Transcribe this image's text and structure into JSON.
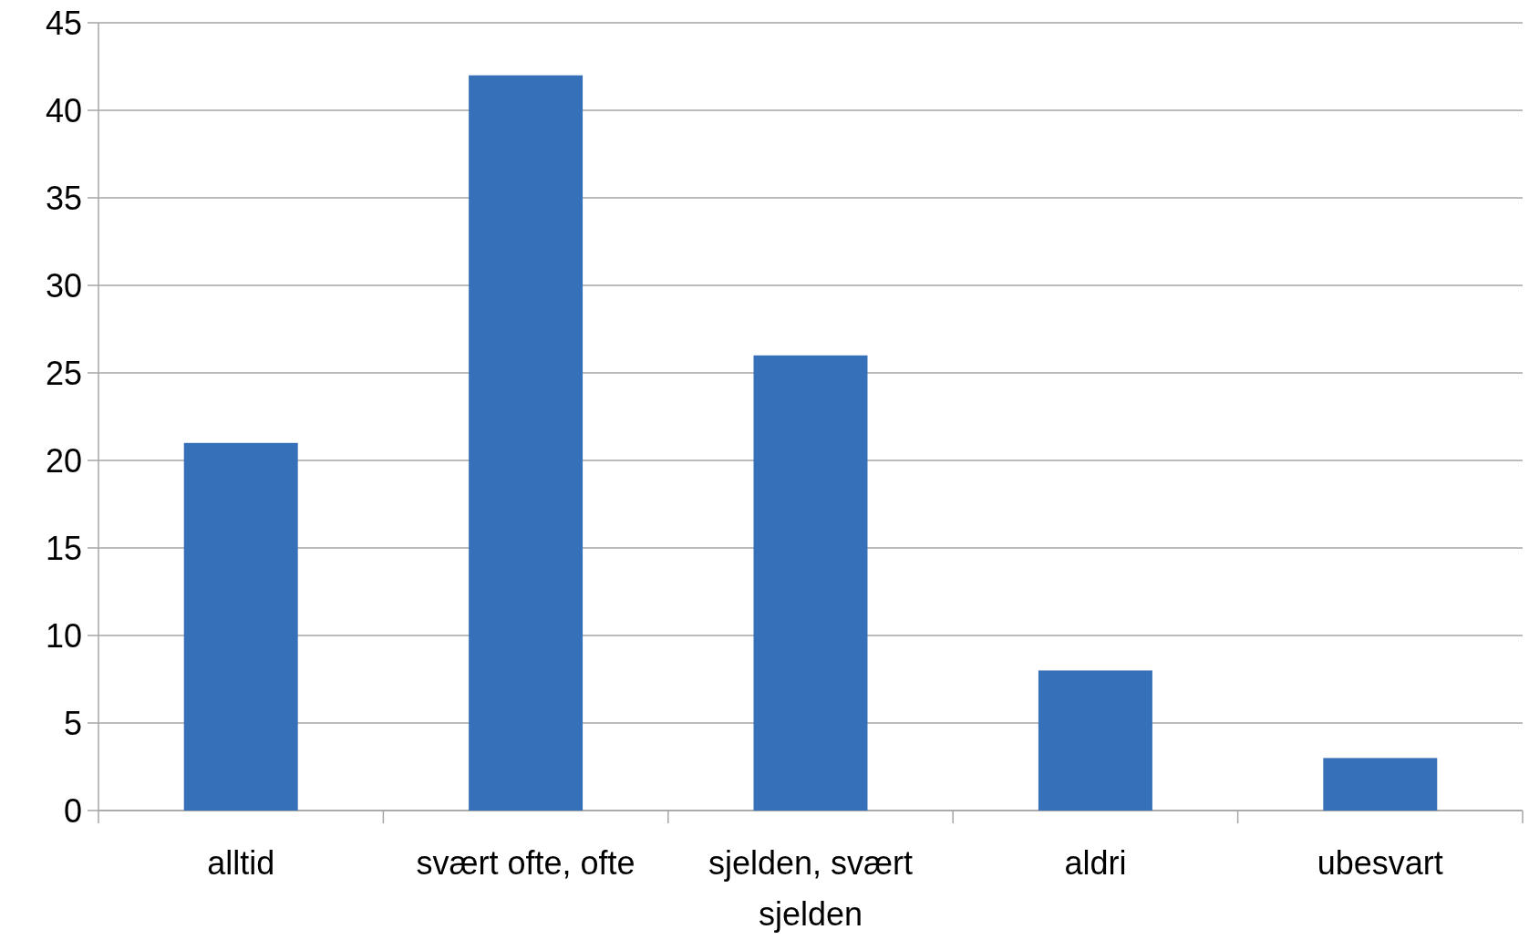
{
  "chart_data": {
    "type": "bar",
    "categories": [
      "alltid",
      "svært ofte, ofte",
      "sjelden, svært sjelden",
      "aldri",
      "ubesvart"
    ],
    "values": [
      21,
      42,
      26,
      8,
      3
    ],
    "color": "#3570b8",
    "ylim": [
      0,
      45
    ],
    "yticks": [
      0,
      5,
      10,
      15,
      20,
      25,
      30,
      35,
      40,
      45
    ],
    "grid": "y"
  }
}
